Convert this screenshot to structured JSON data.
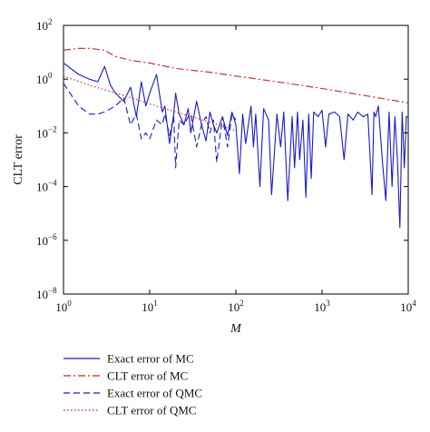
{
  "chart_data": {
    "type": "line",
    "xlabel": "M",
    "ylabel": "CLT error",
    "x_scale": "log",
    "y_scale": "log",
    "xlim": [
      1,
      10000
    ],
    "ylim": [
      1e-08,
      100
    ],
    "grid": false,
    "legend_position": "below-plot-left",
    "x_ticks": [
      {
        "value": 1,
        "base": "10",
        "exp": "0"
      },
      {
        "value": 10,
        "base": "10",
        "exp": "1"
      },
      {
        "value": 100,
        "base": "10",
        "exp": "2"
      },
      {
        "value": 1000,
        "base": "10",
        "exp": "3"
      },
      {
        "value": 10000,
        "base": "10",
        "exp": "4"
      }
    ],
    "y_ticks": [
      {
        "value": 100,
        "base": "10",
        "exp": "2"
      },
      {
        "value": 1,
        "base": "10",
        "exp": "0"
      },
      {
        "value": 0.01,
        "base": "10",
        "exp": "−2"
      },
      {
        "value": 0.0001,
        "base": "10",
        "exp": "−4"
      },
      {
        "value": 1e-06,
        "base": "10",
        "exp": "−6"
      },
      {
        "value": 1e-08,
        "base": "10",
        "exp": "−8"
      }
    ],
    "series": [
      {
        "name": "Exact error of MC",
        "color": "#1a1ac8",
        "style": "solid",
        "x": [
          1,
          1.5,
          2,
          2.5,
          3,
          3.5,
          4,
          5,
          6,
          7,
          8,
          9,
          10,
          12,
          14,
          15,
          17,
          19,
          20,
          22,
          25,
          28,
          30,
          35,
          40,
          45,
          50,
          55,
          60,
          70,
          80,
          90,
          100,
          110,
          120,
          130,
          150,
          160,
          170,
          190,
          210,
          240,
          260,
          300,
          330,
          360,
          400,
          450,
          480,
          520,
          550,
          600,
          650,
          700,
          750,
          800,
          900,
          1000,
          1100,
          1200,
          1400,
          1600,
          1800,
          2000,
          2300,
          2600,
          3000,
          3400,
          3800,
          4000,
          4200,
          4500,
          5000,
          5500,
          6000,
          6500,
          7000,
          7500,
          8000,
          8500,
          9000,
          9500,
          10000
        ],
        "y": [
          4,
          1.5,
          1,
          0.8,
          3,
          0.6,
          0.3,
          0.15,
          0.5,
          0.04,
          0.8,
          0.1,
          0.3,
          1.5,
          0.06,
          0.1,
          0.004,
          0.05,
          0.3,
          0.05,
          0.02,
          0.08,
          0.01,
          0.15,
          0.02,
          0.005,
          0.06,
          0.02,
          0.01,
          0.04,
          0.008,
          0.06,
          0.02,
          0.0003,
          0.05,
          0.004,
          0.1,
          0.003,
          0.05,
          0.0001,
          0.08,
          0.03,
          5e-05,
          0.05,
          0.003,
          0.06,
          3e-05,
          0.04,
          0.0005,
          0.06,
          0.001,
          0.03,
          4e-05,
          0.05,
          0.0002,
          0.06,
          0.04,
          0.07,
          0.003,
          0.05,
          0.06,
          0.04,
          0.001,
          0.05,
          0.03,
          0.06,
          0.04,
          0.05,
          5e-05,
          0.06,
          0.04,
          0.1,
          0.001,
          3e-05,
          0.06,
          0.0001,
          0.04,
          0.001,
          3e-06,
          0.06,
          0.0005,
          0.04,
          0.04
        ]
      },
      {
        "name": "CLT error of MC",
        "color": "#cc2020",
        "style": "dashdot",
        "x": [
          1,
          1.5,
          2,
          3,
          4,
          6,
          10,
          20,
          50,
          100,
          300,
          1000,
          3000,
          10000
        ],
        "y": [
          12,
          14,
          14,
          12,
          7,
          5,
          4,
          2.5,
          1.8,
          1.3,
          0.8,
          0.45,
          0.25,
          0.13
        ]
      },
      {
        "name": "Exact error of QMC",
        "color": "#1a1ac8",
        "style": "dashed",
        "x": [
          1,
          1.5,
          2,
          2.5,
          3,
          4,
          5,
          6,
          7,
          8,
          9,
          10,
          12,
          14,
          15,
          17,
          19,
          20,
          22,
          25,
          28,
          30,
          35,
          40,
          45,
          50,
          55,
          60,
          70,
          80,
          90,
          100
        ],
        "y": [
          0.7,
          0.1,
          0.05,
          0.05,
          0.06,
          0.1,
          0.2,
          0.02,
          0.05,
          0.006,
          0.01,
          0.006,
          0.03,
          0.02,
          0.05,
          0.008,
          0.04,
          0.0005,
          0.03,
          0.02,
          0.04,
          0.05,
          0.003,
          0.02,
          0.04,
          0.01,
          0.03,
          0.0008,
          0.04,
          0.003,
          0.05,
          0.03
        ]
      },
      {
        "name": "CLT error of QMC",
        "color": "#cc2020",
        "style": "dotted",
        "x": [
          1,
          2,
          3,
          5,
          10,
          20,
          50,
          100
        ],
        "y": [
          1.3,
          0.6,
          0.4,
          0.25,
          0.12,
          0.06,
          0.025,
          0.012
        ]
      }
    ]
  }
}
